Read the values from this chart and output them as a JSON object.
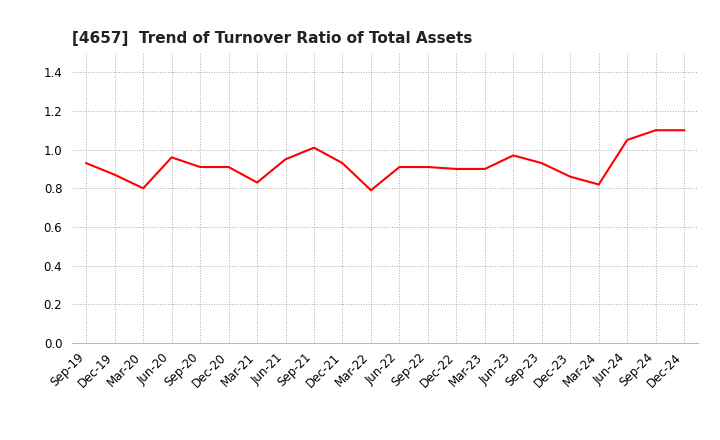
{
  "title": "[4657]  Trend of Turnover Ratio of Total Assets",
  "x_labels": [
    "Sep-19",
    "Dec-19",
    "Mar-20",
    "Jun-20",
    "Sep-20",
    "Dec-20",
    "Mar-21",
    "Jun-21",
    "Sep-21",
    "Dec-21",
    "Mar-22",
    "Jun-22",
    "Sep-22",
    "Dec-22",
    "Mar-23",
    "Jun-23",
    "Sep-23",
    "Dec-23",
    "Mar-24",
    "Jun-24",
    "Sep-24",
    "Dec-24"
  ],
  "y_values": [
    0.93,
    0.87,
    0.8,
    0.96,
    0.91,
    0.91,
    0.83,
    0.95,
    1.01,
    0.93,
    0.79,
    0.91,
    0.91,
    0.9,
    0.9,
    0.97,
    0.93,
    0.86,
    0.82,
    1.05,
    1.1,
    1.1
  ],
  "line_color": "#FF0000",
  "line_width": 1.5,
  "ylim": [
    0.0,
    1.5
  ],
  "yticks": [
    0.0,
    0.2,
    0.4,
    0.6,
    0.8,
    1.0,
    1.2,
    1.4
  ],
  "grid_color": "#aaaaaa",
  "grid_style": "dotted",
  "background_color": "#ffffff",
  "title_fontsize": 11,
  "tick_fontsize": 8.5
}
